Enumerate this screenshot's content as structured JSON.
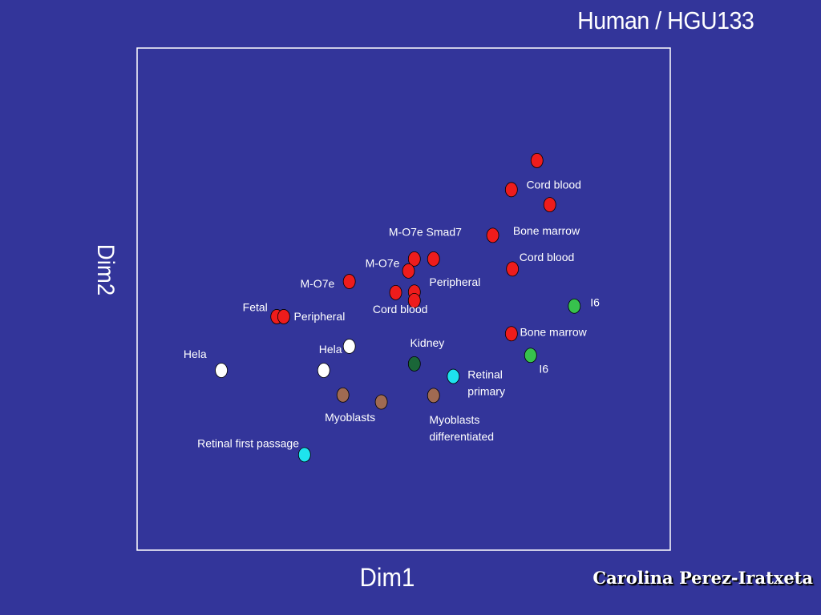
{
  "chart_data": {
    "type": "scatter",
    "title": "Human / HGU133",
    "xlabel": "Dim1",
    "ylabel": "Dim2",
    "xlim": [
      0,
      100
    ],
    "ylim": [
      0,
      100
    ],
    "grid": false,
    "legend": "none",
    "colors": {
      "background": "#33359a",
      "frame": "#ffffff",
      "red": "#ee1c1c",
      "white": "#ffffff",
      "cyan": "#1ee3ee",
      "brown": "#a06a52",
      "green": "#37c24d",
      "darkgreen": "#1a6638"
    },
    "points": [
      {
        "x": 75.0,
        "y": 77.6,
        "color": "red"
      },
      {
        "x": 70.2,
        "y": 71.8,
        "color": "red"
      },
      {
        "x": 77.4,
        "y": 68.8,
        "color": "red"
      },
      {
        "x": 66.7,
        "y": 62.7,
        "color": "red"
      },
      {
        "x": 55.6,
        "y": 58.0,
        "color": "red"
      },
      {
        "x": 52.0,
        "y": 58.0,
        "color": "red"
      },
      {
        "x": 50.9,
        "y": 55.6,
        "color": "red"
      },
      {
        "x": 70.4,
        "y": 56.0,
        "color": "red"
      },
      {
        "x": 39.8,
        "y": 53.5,
        "color": "red"
      },
      {
        "x": 48.5,
        "y": 51.3,
        "color": "red"
      },
      {
        "x": 52.0,
        "y": 51.4,
        "color": "red"
      },
      {
        "x": 52.0,
        "y": 49.7,
        "color": "red"
      },
      {
        "x": 26.2,
        "y": 46.5,
        "color": "red"
      },
      {
        "x": 27.5,
        "y": 46.5,
        "color": "red"
      },
      {
        "x": 70.2,
        "y": 43.1,
        "color": "red"
      },
      {
        "x": 82.0,
        "y": 48.6,
        "color": "green"
      },
      {
        "x": 73.8,
        "y": 38.8,
        "color": "green"
      },
      {
        "x": 52.0,
        "y": 37.1,
        "color": "darkgreen"
      },
      {
        "x": 39.8,
        "y": 40.6,
        "color": "white"
      },
      {
        "x": 35.0,
        "y": 35.8,
        "color": "white"
      },
      {
        "x": 15.8,
        "y": 35.8,
        "color": "white"
      },
      {
        "x": 59.3,
        "y": 34.6,
        "color": "cyan"
      },
      {
        "x": 31.4,
        "y": 19.0,
        "color": "cyan"
      },
      {
        "x": 38.6,
        "y": 30.9,
        "color": "brown"
      },
      {
        "x": 45.8,
        "y": 29.5,
        "color": "brown"
      },
      {
        "x": 55.6,
        "y": 30.8,
        "color": "brown"
      }
    ],
    "annotations": [
      {
        "lines": [
          "Cord blood"
        ],
        "x": 73.0,
        "y": 72.0,
        "anchor": "start"
      },
      {
        "lines": [
          "Bone marrow"
        ],
        "x": 70.5,
        "y": 62.8,
        "anchor": "start"
      },
      {
        "lines": [
          "M-O7e Smad7"
        ],
        "x": 47.2,
        "y": 62.6,
        "anchor": "start"
      },
      {
        "lines": [
          "Cord blood"
        ],
        "x": 71.7,
        "y": 57.6,
        "anchor": "start"
      },
      {
        "lines": [
          "M-O7e"
        ],
        "x": 42.8,
        "y": 56.4,
        "anchor": "start"
      },
      {
        "lines": [
          "Peripheral"
        ],
        "x": 54.8,
        "y": 52.6,
        "anchor": "start"
      },
      {
        "lines": [
          "M-O7e"
        ],
        "x": 30.6,
        "y": 52.3,
        "anchor": "start"
      },
      {
        "lines": [
          "I6"
        ],
        "x": 85.0,
        "y": 48.6,
        "anchor": "start"
      },
      {
        "lines": [
          "Fetal"
        ],
        "x": 19.8,
        "y": 47.6,
        "anchor": "start"
      },
      {
        "lines": [
          "Cord blood"
        ],
        "x": 44.2,
        "y": 47.2,
        "anchor": "start"
      },
      {
        "lines": [
          "Peripheral"
        ],
        "x": 29.4,
        "y": 45.8,
        "anchor": "start"
      },
      {
        "lines": [
          "Bone marrow"
        ],
        "x": 71.8,
        "y": 42.7,
        "anchor": "start"
      },
      {
        "lines": [
          "Kidney"
        ],
        "x": 51.2,
        "y": 40.5,
        "anchor": "start"
      },
      {
        "lines": [
          "Hela"
        ],
        "x": 34.1,
        "y": 39.2,
        "anchor": "start"
      },
      {
        "lines": [
          "Hela"
        ],
        "x": 8.7,
        "y": 38.3,
        "anchor": "start"
      },
      {
        "lines": [
          "I6"
        ],
        "x": 75.4,
        "y": 35.3,
        "anchor": "start"
      },
      {
        "lines": [
          "Retinal",
          "primary"
        ],
        "x": 62.0,
        "y": 34.2,
        "anchor": "start"
      },
      {
        "lines": [
          "Myoblasts"
        ],
        "x": 35.2,
        "y": 25.7,
        "anchor": "start"
      },
      {
        "lines": [
          "Myoblasts",
          "differentiated"
        ],
        "x": 54.8,
        "y": 25.2,
        "anchor": "start"
      },
      {
        "lines": [
          "Retinal first passage"
        ],
        "x": 11.3,
        "y": 20.5,
        "anchor": "start"
      }
    ]
  },
  "author": "Carolina Perez-Iratxeta"
}
